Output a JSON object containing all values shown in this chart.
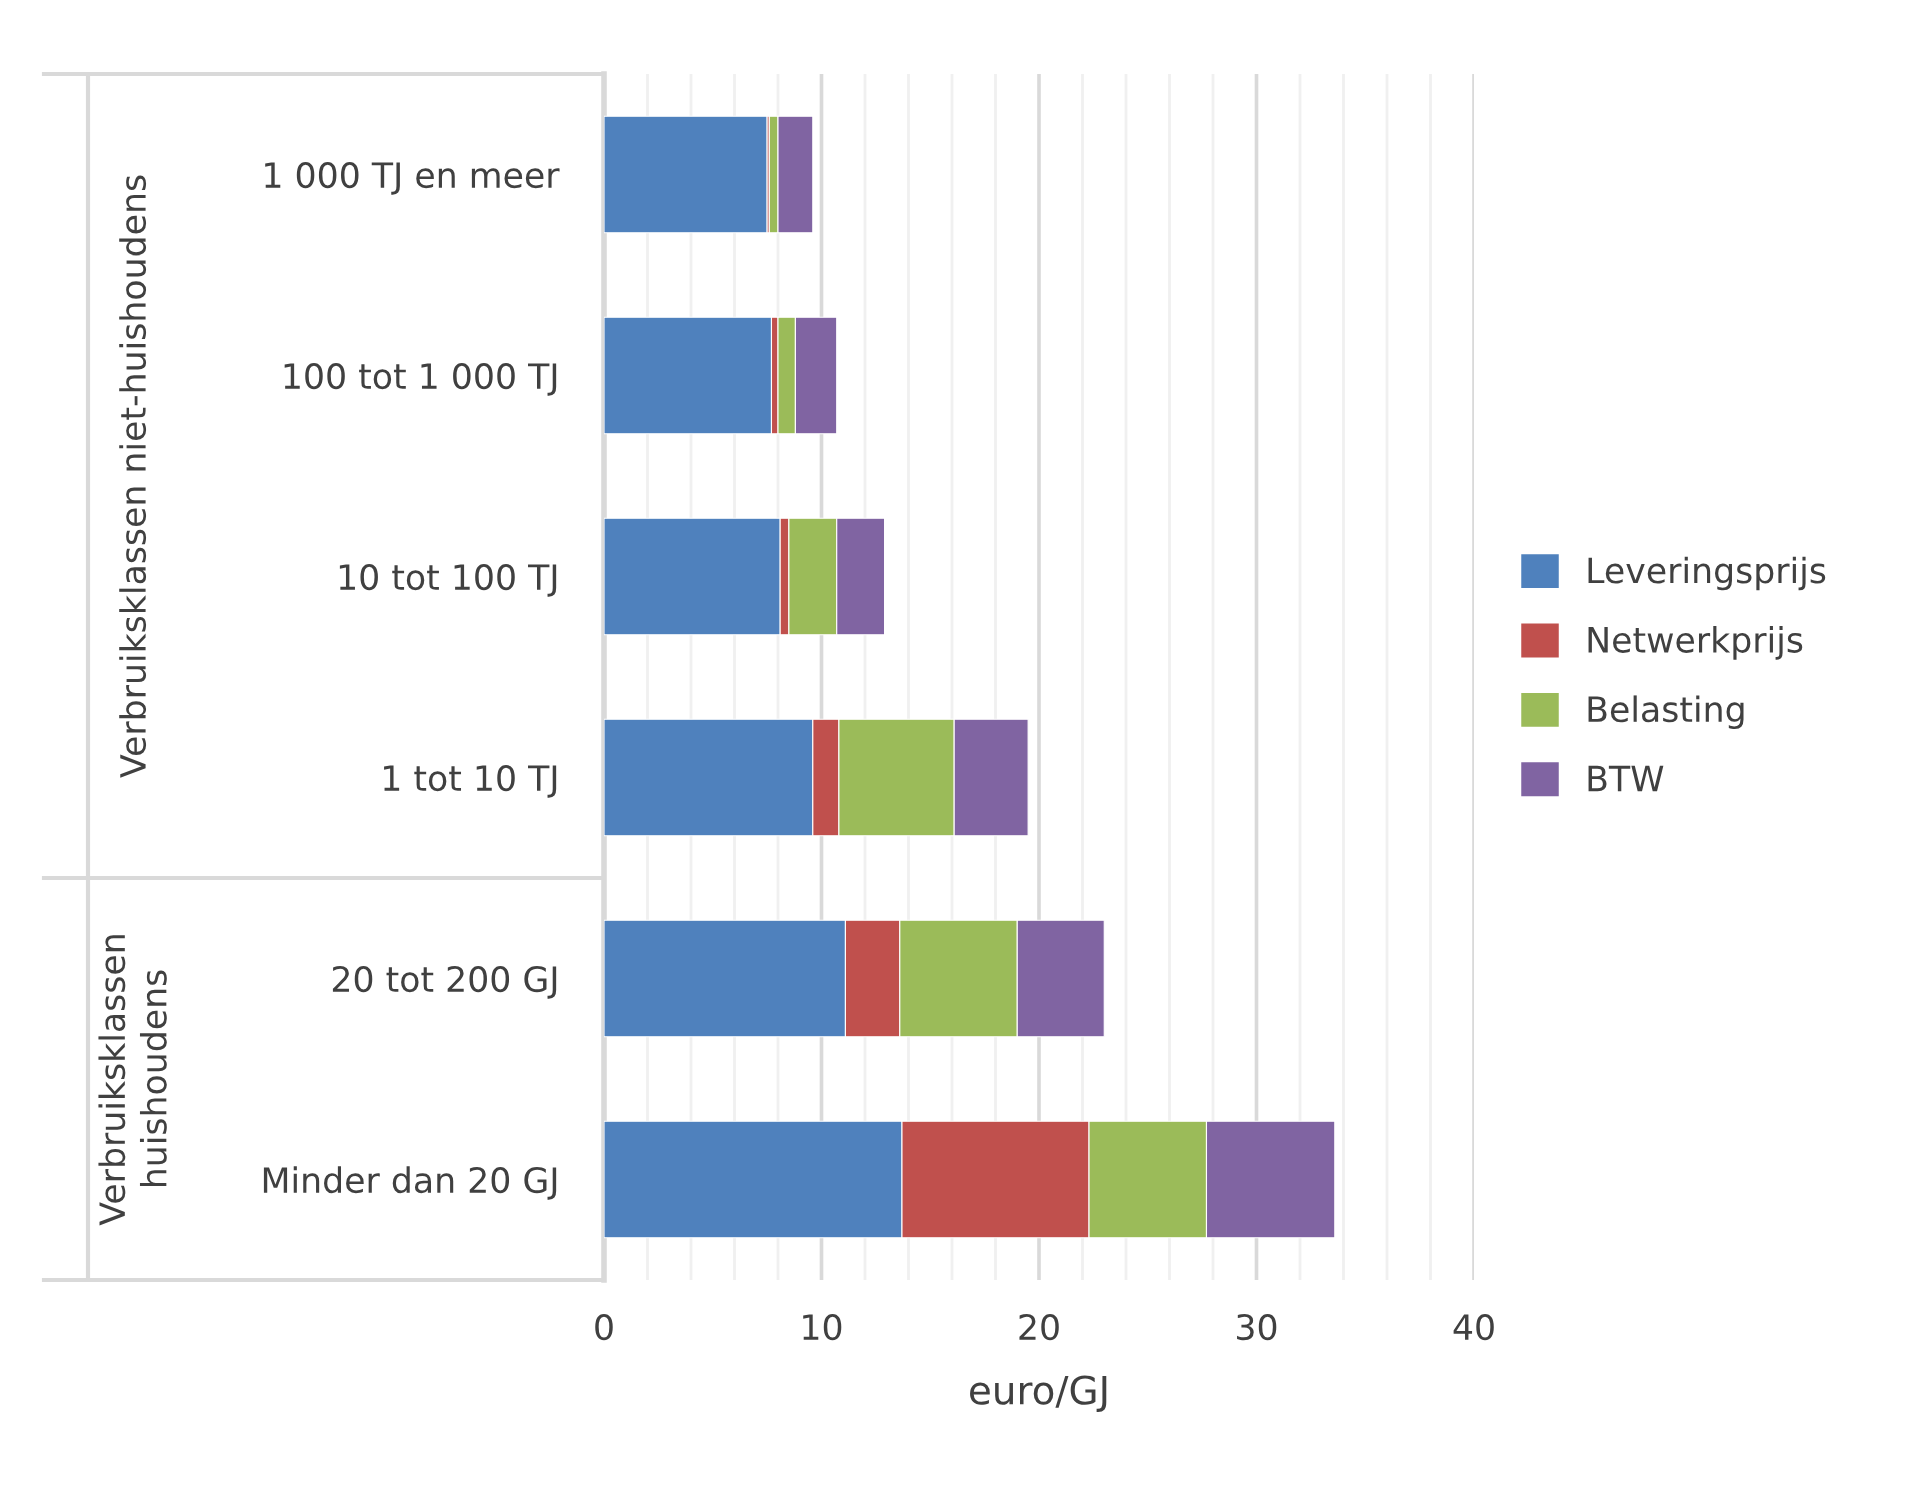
{
  "chart_data": {
    "type": "bar",
    "orientation": "horizontal",
    "stacked": true,
    "xlabel": "euro/GJ",
    "categories": [
      "1 000 TJ en meer",
      "100 tot 1 000 TJ",
      "10 tot 100 TJ",
      "1 tot 10 TJ",
      "20 tot 200 GJ",
      "Minder dan 20 GJ"
    ],
    "series": [
      {
        "name": "Leveringsprijs",
        "color": "#4f81bd",
        "values": [
          7.5,
          7.7,
          8.1,
          9.6,
          11.1,
          13.7
        ]
      },
      {
        "name": "Netwerkprijs",
        "color": "#c0504d",
        "values": [
          0.1,
          0.3,
          0.4,
          1.2,
          2.5,
          8.6
        ]
      },
      {
        "name": "Belasting",
        "color": "#9bbb59",
        "values": [
          0.4,
          0.8,
          2.2,
          5.3,
          5.4,
          5.4
        ]
      },
      {
        "name": "BTW",
        "color": "#8064a2",
        "values": [
          1.6,
          1.9,
          2.2,
          3.4,
          4.0,
          5.9
        ]
      }
    ],
    "xlim": [
      0,
      40
    ],
    "xticks": [
      0,
      {
        "value": 2,
        "label": null
      },
      {
        "value": 4,
        "label": null
      },
      {
        "value": 6,
        "label": null
      },
      {
        "value": 8,
        "label": null
      },
      10,
      {
        "value": 12,
        "label": null
      },
      {
        "value": 14,
        "label": null
      },
      {
        "value": 16,
        "label": null
      },
      {
        "value": 18,
        "label": null
      },
      20,
      {
        "value": 22,
        "label": null
      },
      {
        "value": 24,
        "label": null
      },
      {
        "value": 26,
        "label": null
      },
      {
        "value": 28,
        "label": null
      },
      30,
      {
        "value": 32,
        "label": null
      },
      {
        "value": 34,
        "label": null
      },
      {
        "value": 36,
        "label": null
      },
      {
        "value": 38,
        "label": null
      },
      40
    ],
    "grid": "x",
    "legend": "right",
    "annotations": [
      "Verbruiksklassen niet-huishoudens",
      "Verbruiksklassen\nhuishoudens"
    ]
  }
}
